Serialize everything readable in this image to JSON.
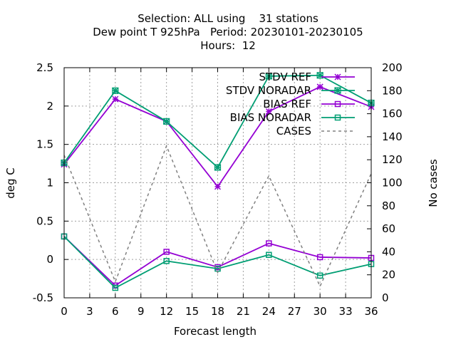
{
  "chart_data": {
    "type": "line",
    "title_lines": [
      "Selection: ALL using    31 stations",
      "Dew point T 925hPa   Period: 20230101-20230105",
      "Hours:  12"
    ],
    "xlabel": "Forecast length",
    "ylabel": "deg C",
    "y2label": "No cases",
    "xlim": [
      0,
      36
    ],
    "ylim": [
      -0.5,
      2.5
    ],
    "y2lim": [
      0,
      200
    ],
    "x_ticks": [
      0,
      3,
      6,
      9,
      12,
      15,
      18,
      21,
      24,
      27,
      30,
      33,
      36
    ],
    "y_ticks": [
      -0.5,
      0,
      0.5,
      1,
      1.5,
      2,
      2.5
    ],
    "y_tick_labels": [
      "-0.5",
      "0",
      "0.5",
      "1",
      "1.5",
      "2",
      "2.5"
    ],
    "y2_ticks": [
      0,
      20,
      40,
      60,
      80,
      100,
      120,
      140,
      160,
      180,
      200
    ],
    "grid": true,
    "legend_position": "top-right",
    "x": [
      0,
      6,
      12,
      18,
      24,
      30,
      36
    ],
    "series": [
      {
        "name": "STDV REF",
        "axis": "y1",
        "marker": "star",
        "dash": false,
        "color": "#9400d3",
        "values": [
          1.24,
          2.09,
          1.8,
          0.95,
          1.93,
          2.25,
          1.99
        ]
      },
      {
        "name": "STDV NORADAR",
        "axis": "y1",
        "marker": "boxstar",
        "dash": false,
        "color": "#009e73",
        "values": [
          1.26,
          2.2,
          1.8,
          1.2,
          2.39,
          2.4,
          2.04
        ]
      },
      {
        "name": "BIAS REF",
        "axis": "y1",
        "marker": "square",
        "dash": false,
        "color": "#9400d3",
        "values": [
          0.3,
          -0.34,
          0.1,
          -0.1,
          0.21,
          0.03,
          0.02
        ]
      },
      {
        "name": "BIAS NORADAR",
        "axis": "y1",
        "marker": "square",
        "dash": false,
        "color": "#009e73",
        "values": [
          0.3,
          -0.37,
          -0.02,
          -0.12,
          0.06,
          -0.21,
          -0.06
        ]
      },
      {
        "name": "CASES",
        "axis": "y2",
        "marker": "none",
        "dash": true,
        "color": "#808080",
        "values": [
          124,
          14,
          132,
          22,
          106,
          10,
          108
        ]
      }
    ]
  }
}
